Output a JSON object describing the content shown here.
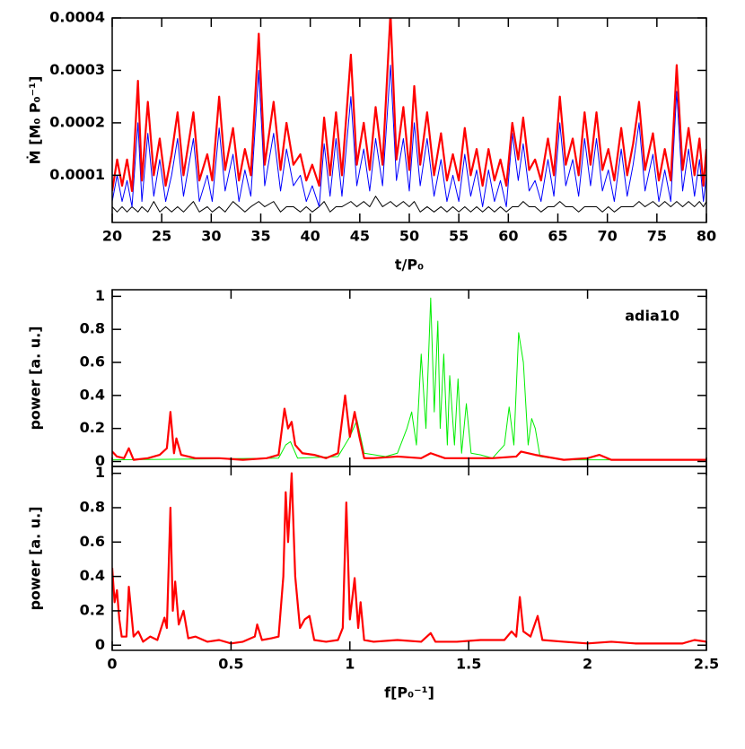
{
  "chart_data": [
    {
      "type": "line",
      "ylabel": "Ṁ [M₀ P₀⁻¹]",
      "xlabel": "t/P₀",
      "xlim": [
        20,
        80
      ],
      "ylim": [
        1e-05,
        0.0004
      ],
      "xticks": [
        20,
        25,
        30,
        35,
        40,
        45,
        50,
        55,
        60,
        65,
        70,
        75,
        80
      ],
      "yticks": [
        0.0001,
        0.0002,
        0.0003,
        0.0004
      ],
      "x": [
        20,
        20.5,
        21,
        21.5,
        22,
        22.6,
        23,
        23.6,
        24.2,
        24.8,
        25.4,
        26,
        26.6,
        27.2,
        28.2,
        28.8,
        29.6,
        30.1,
        30.8,
        31.4,
        32.2,
        32.8,
        33.4,
        34,
        34.8,
        35.4,
        36.3,
        37,
        37.6,
        38.3,
        39,
        39.6,
        40.2,
        40.9,
        41.4,
        42,
        42.6,
        43.2,
        44.1,
        44.7,
        45.4,
        46,
        46.6,
        47.3,
        48.1,
        48.7,
        49.4,
        50,
        50.5,
        51.1,
        51.8,
        52.5,
        53.2,
        53.8,
        54.4,
        55,
        55.6,
        56.2,
        56.8,
        57.4,
        58,
        58.6,
        59.2,
        59.8,
        60.4,
        61,
        61.5,
        62.1,
        62.7,
        63.3,
        64,
        64.6,
        65.2,
        65.8,
        66.5,
        67.1,
        67.7,
        68.3,
        68.9,
        69.5,
        70.1,
        70.7,
        71.4,
        72,
        72.6,
        73.2,
        73.8,
        74.6,
        75.2,
        75.8,
        76.4,
        77,
        77.6,
        78.2,
        78.8,
        79.3,
        79.7,
        80
      ],
      "series": [
        {
          "color": "#000000",
          "width": 1,
          "values": [
            4e-05,
            3e-05,
            4e-05,
            3e-05,
            4e-05,
            3e-05,
            4e-05,
            3e-05,
            5e-05,
            3e-05,
            4e-05,
            3e-05,
            4e-05,
            3e-05,
            5e-05,
            3e-05,
            4e-05,
            3e-05,
            4e-05,
            3e-05,
            5e-05,
            4e-05,
            3e-05,
            4e-05,
            5e-05,
            4e-05,
            5e-05,
            3e-05,
            4e-05,
            4e-05,
            3e-05,
            4e-05,
            3e-05,
            4e-05,
            5e-05,
            3e-05,
            4e-05,
            4e-05,
            5e-05,
            4e-05,
            5e-05,
            4e-05,
            6e-05,
            4e-05,
            5e-05,
            4e-05,
            5e-05,
            4e-05,
            5e-05,
            3e-05,
            4e-05,
            3e-05,
            4e-05,
            3e-05,
            4e-05,
            3e-05,
            4e-05,
            3e-05,
            4e-05,
            3e-05,
            4e-05,
            3e-05,
            4e-05,
            3e-05,
            4e-05,
            4e-05,
            5e-05,
            4e-05,
            4e-05,
            3e-05,
            4e-05,
            4e-05,
            5e-05,
            4e-05,
            4e-05,
            3e-05,
            4e-05,
            4e-05,
            4e-05,
            3e-05,
            4e-05,
            3e-05,
            4e-05,
            4e-05,
            4e-05,
            5e-05,
            4e-05,
            5e-05,
            4e-05,
            5e-05,
            4e-05,
            5e-05,
            4e-05,
            5e-05,
            4e-05,
            5e-05,
            4e-05,
            5e-05
          ]
        },
        {
          "color": "#0000ff",
          "width": 1,
          "values": [
            5e-05,
            0.0001,
            5e-05,
            9e-05,
            4e-05,
            0.0002,
            5e-05,
            0.00018,
            6e-05,
            0.00013,
            5e-05,
            0.0001,
            0.00017,
            6e-05,
            0.00017,
            5e-05,
            0.0001,
            5e-05,
            0.00019,
            7e-05,
            0.00014,
            5e-05,
            0.00011,
            6e-05,
            0.0003,
            8e-05,
            0.00018,
            7e-05,
            0.00015,
            8e-05,
            0.0001,
            5e-05,
            8e-05,
            4e-05,
            0.00016,
            6e-05,
            0.00017,
            6e-05,
            0.00025,
            8e-05,
            0.00015,
            7e-05,
            0.00017,
            8e-05,
            0.00031,
            9e-05,
            0.00017,
            7e-05,
            0.0002,
            8e-05,
            0.00017,
            6e-05,
            0.00013,
            5e-05,
            0.0001,
            5e-05,
            0.00014,
            6e-05,
            0.00011,
            4e-05,
            0.00011,
            5e-05,
            9e-05,
            4e-05,
            0.00018,
            9e-05,
            0.00016,
            7e-05,
            9e-05,
            5e-05,
            0.00013,
            6e-05,
            0.0002,
            8e-05,
            0.00013,
            6e-05,
            0.00017,
            8e-05,
            0.00017,
            7e-05,
            0.00011,
            5e-05,
            0.00015,
            6e-05,
            0.00012,
            0.0002,
            7e-05,
            0.00014,
            5e-05,
            0.00011,
            5e-05,
            0.00026,
            7e-05,
            0.00015,
            6e-05,
            0.00013,
            5e-05,
            0.0001
          ]
        },
        {
          "color": "#ff0000",
          "width": 2.2,
          "values": [
            7e-05,
            0.00013,
            8e-05,
            0.00013,
            7e-05,
            0.00028,
            9e-05,
            0.00024,
            0.0001,
            0.00017,
            8e-05,
            0.00014,
            0.00022,
            0.0001,
            0.00022,
            9e-05,
            0.00014,
            9e-05,
            0.00025,
            0.00011,
            0.00019,
            9e-05,
            0.00015,
            0.0001,
            0.00037,
            0.00012,
            0.00024,
            0.00011,
            0.0002,
            0.00012,
            0.00014,
            9e-05,
            0.00012,
            8e-05,
            0.00021,
            0.0001,
            0.00022,
            0.0001,
            0.00033,
            0.00012,
            0.0002,
            0.00011,
            0.00023,
            0.00012,
            0.00041,
            0.00013,
            0.00023,
            0.00011,
            0.00027,
            0.00012,
            0.00022,
            0.0001,
            0.00018,
            9e-05,
            0.00014,
            9e-05,
            0.00019,
            0.0001,
            0.00015,
            8e-05,
            0.00015,
            9e-05,
            0.00013,
            8e-05,
            0.0002,
            0.00013,
            0.00021,
            0.00011,
            0.00013,
            9e-05,
            0.00017,
            0.0001,
            0.00025,
            0.00012,
            0.00017,
            0.0001,
            0.00022,
            0.00012,
            0.00022,
            0.00011,
            0.00015,
            9e-05,
            0.00019,
            0.0001,
            0.00016,
            0.00024,
            0.00011,
            0.00018,
            9e-05,
            0.00015,
            9e-05,
            0.00031,
            0.00011,
            0.00019,
            0.0001,
            0.00017,
            8e-05,
            0.00015
          ]
        }
      ]
    },
    {
      "type": "line",
      "ylabel": "power [a. u.]",
      "annotation": "adia10",
      "xlim": [
        0,
        2.5
      ],
      "ylim": [
        -0.03,
        1.04
      ],
      "xticks": [
        0,
        0.5,
        1,
        1.5,
        2,
        2.5
      ],
      "xtick_labels": false,
      "yticks": [
        0,
        0.2,
        0.4,
        0.6,
        0.8,
        1
      ],
      "series": [
        {
          "color": "#00ee00",
          "width": 1,
          "x": [
            0,
            0.7,
            0.73,
            0.75,
            0.78,
            0.95,
            1.0,
            1.03,
            1.06,
            1.15,
            1.2,
            1.24,
            1.26,
            1.28,
            1.3,
            1.32,
            1.34,
            1.355,
            1.37,
            1.38,
            1.395,
            1.41,
            1.42,
            1.44,
            1.455,
            1.47,
            1.49,
            1.51,
            1.55,
            1.6,
            1.65,
            1.67,
            1.69,
            1.71,
            1.73,
            1.75,
            1.765,
            1.78,
            1.8,
            1.9,
            2.0,
            2.5
          ],
          "values": [
            0.01,
            0.02,
            0.1,
            0.12,
            0.02,
            0.03,
            0.15,
            0.25,
            0.05,
            0.03,
            0.05,
            0.2,
            0.3,
            0.1,
            0.65,
            0.2,
            0.99,
            0.3,
            0.85,
            0.2,
            0.65,
            0.1,
            0.52,
            0.1,
            0.5,
            0.05,
            0.35,
            0.05,
            0.04,
            0.02,
            0.1,
            0.33,
            0.1,
            0.78,
            0.6,
            0.1,
            0.26,
            0.2,
            0.03,
            0.01,
            0.01,
            0.01
          ]
        },
        {
          "color": "#ff0000",
          "width": 2.2,
          "x": [
            0,
            0.02,
            0.05,
            0.07,
            0.09,
            0.15,
            0.2,
            0.23,
            0.245,
            0.26,
            0.27,
            0.29,
            0.35,
            0.45,
            0.55,
            0.65,
            0.7,
            0.725,
            0.74,
            0.755,
            0.77,
            0.8,
            0.85,
            0.9,
            0.95,
            0.98,
            1.0,
            1.02,
            1.04,
            1.06,
            1.1,
            1.2,
            1.3,
            1.34,
            1.4,
            1.5,
            1.6,
            1.7,
            1.72,
            1.78,
            1.9,
            2.0,
            2.05,
            2.1,
            2.2,
            2.3,
            2.4,
            2.5
          ],
          "values": [
            0.06,
            0.03,
            0.02,
            0.08,
            0.01,
            0.02,
            0.04,
            0.08,
            0.3,
            0.05,
            0.14,
            0.04,
            0.02,
            0.02,
            0.01,
            0.02,
            0.04,
            0.32,
            0.2,
            0.24,
            0.1,
            0.05,
            0.04,
            0.02,
            0.05,
            0.4,
            0.15,
            0.3,
            0.15,
            0.02,
            0.02,
            0.03,
            0.02,
            0.05,
            0.02,
            0.02,
            0.02,
            0.03,
            0.06,
            0.04,
            0.01,
            0.02,
            0.04,
            0.01,
            0.01,
            0.01,
            0.01,
            0.01
          ]
        }
      ]
    },
    {
      "type": "line",
      "ylabel": "power [a. u.]",
      "xlabel": "f[P₀⁻¹]",
      "xlim": [
        0,
        2.5
      ],
      "ylim": [
        -0.03,
        1.04
      ],
      "xticks": [
        0,
        0.5,
        1,
        1.5,
        2,
        2.5
      ],
      "yticks": [
        0,
        0.2,
        0.4,
        0.6,
        0.8,
        1
      ],
      "series": [
        {
          "color": "#ff0000",
          "width": 2.2,
          "x": [
            0,
            0.01,
            0.02,
            0.03,
            0.04,
            0.06,
            0.07,
            0.09,
            0.11,
            0.13,
            0.16,
            0.19,
            0.22,
            0.23,
            0.245,
            0.255,
            0.265,
            0.28,
            0.3,
            0.32,
            0.35,
            0.4,
            0.45,
            0.5,
            0.55,
            0.6,
            0.61,
            0.63,
            0.67,
            0.7,
            0.72,
            0.73,
            0.74,
            0.755,
            0.77,
            0.79,
            0.81,
            0.83,
            0.85,
            0.9,
            0.95,
            0.97,
            0.985,
            1.0,
            1.02,
            1.035,
            1.045,
            1.06,
            1.1,
            1.2,
            1.3,
            1.34,
            1.36,
            1.45,
            1.55,
            1.65,
            1.68,
            1.7,
            1.715,
            1.73,
            1.76,
            1.79,
            1.81,
            1.9,
            2.0,
            2.1,
            2.2,
            2.3,
            2.4,
            2.45,
            2.5
          ],
          "values": [
            0.45,
            0.25,
            0.32,
            0.15,
            0.05,
            0.05,
            0.34,
            0.05,
            0.08,
            0.02,
            0.05,
            0.03,
            0.16,
            0.1,
            0.8,
            0.2,
            0.37,
            0.12,
            0.2,
            0.04,
            0.05,
            0.02,
            0.03,
            0.01,
            0.02,
            0.05,
            0.12,
            0.03,
            0.04,
            0.05,
            0.4,
            0.89,
            0.6,
            1.0,
            0.4,
            0.1,
            0.15,
            0.17,
            0.03,
            0.02,
            0.03,
            0.1,
            0.83,
            0.15,
            0.39,
            0.1,
            0.25,
            0.03,
            0.02,
            0.03,
            0.02,
            0.07,
            0.02,
            0.02,
            0.03,
            0.03,
            0.08,
            0.05,
            0.28,
            0.08,
            0.05,
            0.17,
            0.03,
            0.02,
            0.01,
            0.02,
            0.01,
            0.01,
            0.01,
            0.03,
            0.02
          ]
        }
      ]
    }
  ]
}
